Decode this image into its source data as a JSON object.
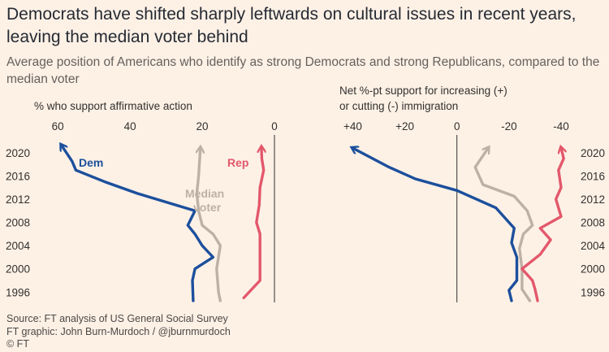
{
  "title": "Democrats have shifted sharply leftwards on cultural issues in recent years, leaving the median voter behind",
  "subtitle": "Average position of Americans who identify as strong Democrats and strong Republicans, compared to the median voter",
  "colors": {
    "dem": "#1c4f9c",
    "rep": "#e3586b",
    "median": "#bdb0a4",
    "axis": "#33302e",
    "background": "#fdf1e6"
  },
  "chart_data": [
    {
      "type": "line",
      "ylabel": "% who support affirmative action",
      "xlim": [
        0,
        67
      ],
      "x_reversed": true,
      "x_ticks": [
        60,
        40,
        20,
        0
      ],
      "x_tick_labels": [
        "60",
        "40",
        "20",
        "0"
      ],
      "y_ticks": [
        1996,
        2000,
        2004,
        2008,
        2012,
        2016,
        2020
      ],
      "ylim": [
        1994.5,
        2022.5
      ],
      "series": [
        {
          "name": "Dem",
          "color": "#1c4f9c",
          "points": [
            [
              22.5,
              1994.5
            ],
            [
              22.7,
              1998
            ],
            [
              22,
              2000
            ],
            [
              17,
              2002
            ],
            [
              20,
              2004
            ],
            [
              22,
              2006
            ],
            [
              24,
              2007.5
            ],
            [
              22,
              2010
            ],
            [
              38,
              2013
            ],
            [
              47,
              2015
            ],
            [
              55,
              2017
            ],
            [
              56,
              2018.5
            ],
            [
              59,
              2021.3
            ]
          ]
        },
        {
          "name": "Median voter",
          "color": "#bdb0a4",
          "points": [
            [
              15,
              1994.5
            ],
            [
              15.5,
              1996
            ],
            [
              16,
              2000
            ],
            [
              15,
              2004
            ],
            [
              17,
              2006
            ],
            [
              20,
              2007.5
            ],
            [
              21,
              2010
            ],
            [
              21.5,
              2013
            ],
            [
              21,
              2016
            ],
            [
              20.5,
              2020.8
            ]
          ]
        },
        {
          "name": "Rep",
          "color": "#e3586b",
          "points": [
            [
              8.5,
              1995
            ],
            [
              4,
              1998
            ],
            [
              4,
              2002
            ],
            [
              4,
              2006
            ],
            [
              5,
              2008
            ],
            [
              4.2,
              2011
            ],
            [
              4,
              2014
            ],
            [
              3,
              2017
            ],
            [
              3.5,
              2019
            ],
            [
              3.6,
              2020.9
            ]
          ]
        }
      ],
      "labels": [
        {
          "series": "Dem",
          "text": "Dem"
        },
        {
          "series": "Median voter",
          "text": "Median"
        },
        {
          "series": "Median voter",
          "text": "voter"
        },
        {
          "series": "Rep",
          "text": "Rep"
        }
      ]
    },
    {
      "type": "line",
      "ylabel": "Net %-pt support for increasing (+) or cutting (-) immigration",
      "ylabel_lines": [
        "Net %-pt support for increasing (+)",
        "or cutting (-) immigration"
      ],
      "xlim": [
        -45,
        47
      ],
      "x_reversed": true,
      "x_ticks": [
        40,
        20,
        0,
        -20,
        -40
      ],
      "x_tick_labels": [
        "+40",
        "+20",
        "0",
        "-20",
        "-40"
      ],
      "y_ticks": [
        1996,
        2000,
        2004,
        2008,
        2012,
        2016,
        2020
      ],
      "ylim": [
        1994.5,
        2022.5
      ],
      "series": [
        {
          "name": "Dem",
          "color": "#1c4f9c",
          "points": [
            [
              -21,
              1994.5
            ],
            [
              -20,
              1996.3
            ],
            [
              -23,
              1998
            ],
            [
              -23,
              2002
            ],
            [
              -21,
              2004.5
            ],
            [
              -22,
              2007
            ],
            [
              -15,
              2010.5
            ],
            [
              0,
              2013.5
            ],
            [
              16,
              2015.5
            ],
            [
              26,
              2017.5
            ],
            [
              40,
              2020.8
            ]
          ]
        },
        {
          "name": "Median voter",
          "color": "#bdb0a4",
          "points": [
            [
              -28,
              1994.5
            ],
            [
              -25,
              1996.5
            ],
            [
              -25,
              2000
            ],
            [
              -24,
              2003.5
            ],
            [
              -25.5,
              2006
            ],
            [
              -29,
              2007.5
            ],
            [
              -27,
              2010
            ],
            [
              -22,
              2012.5
            ],
            [
              -10,
              2014.5
            ],
            [
              -7,
              2017.5
            ],
            [
              -12,
              2020.8
            ]
          ]
        },
        {
          "name": "Rep",
          "color": "#e3586b",
          "points": [
            [
              -31,
              1994.5
            ],
            [
              -30,
              1996.5
            ],
            [
              -29,
              1998
            ],
            [
              -25,
              2000
            ],
            [
              -32,
              2002.5
            ],
            [
              -36,
              2005
            ],
            [
              -32,
              2007
            ],
            [
              -40,
              2009
            ],
            [
              -38,
              2012
            ],
            [
              -40,
              2014
            ],
            [
              -39,
              2017
            ],
            [
              -41,
              2019
            ],
            [
              -40,
              2020.8
            ]
          ]
        }
      ]
    }
  ],
  "footer": {
    "source": "Source: FT analysis of US General Social Survey",
    "graphic": "FT graphic: John Burn-Murdoch / @jburnmurdoch",
    "copyright": "© FT"
  }
}
